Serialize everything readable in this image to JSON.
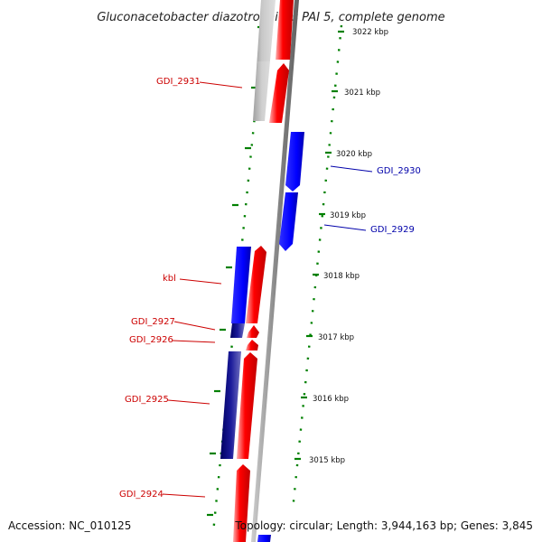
{
  "title": "Gluconacetobacter diazotrophicus PAI 5, complete genome",
  "ticks": [
    {
      "label": "3022 kbp",
      "kbp": 3022
    },
    {
      "label": "3021 kbp",
      "kbp": 3021
    },
    {
      "label": "3020 kbp",
      "kbp": 3020
    },
    {
      "label": "3019 kbp",
      "kbp": 3019
    },
    {
      "label": "3018 kbp",
      "kbp": 3018
    },
    {
      "label": "3017 kbp",
      "kbp": 3017
    },
    {
      "label": "3016 kbp",
      "kbp": 3016
    },
    {
      "label": "3015 kbp",
      "kbp": 3015
    }
  ],
  "gene_labels": [
    {
      "text": "GDI_2931",
      "strand": "forward"
    },
    {
      "text": "GDI_2930",
      "strand": "reverse"
    },
    {
      "text": "GDI_2929",
      "strand": "reverse"
    },
    {
      "text": "kbl",
      "strand": "forward"
    },
    {
      "text": "GDI_2927",
      "strand": "forward"
    },
    {
      "text": "GDI_2926",
      "strand": "forward"
    },
    {
      "text": "GDI_2925",
      "strand": "forward"
    },
    {
      "text": "GDI_2924",
      "strand": "forward"
    }
  ],
  "colors": {
    "forward": "#ff0000",
    "reverse": "#0000ff",
    "dark_reverse": "#000080",
    "grey": "#aaaaaa",
    "label_forward": "#cc0000",
    "label_reverse": "#0000aa",
    "ticks": "#008000",
    "backbone": "#808080"
  },
  "footer": {
    "accession": "Accession: NC_010125",
    "summary": "Topology: circular; Length: 3,944,163 bp; Genes: 3,845"
  }
}
